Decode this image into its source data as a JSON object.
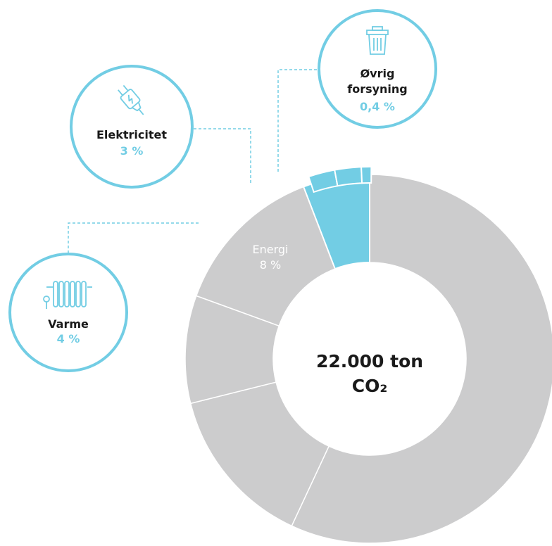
{
  "chart_data": {
    "type": "pie",
    "center_label": {
      "line1": "22.000 ton",
      "line2": "CO₂"
    },
    "energy_slice": {
      "label": "Energi",
      "value_text": "8 %",
      "value": 8
    },
    "slices": [
      {
        "name": "Energi",
        "value": 8,
        "highlighted": true
      },
      {
        "name": "Varme",
        "value": 4,
        "highlighted": true,
        "value_text": "4 %",
        "icon": "radiator-icon"
      },
      {
        "name": "Elektricitet",
        "value": 3,
        "highlighted": true,
        "value_text": "3 %",
        "icon": "plug-icon"
      },
      {
        "name": "Øvrig forsyning",
        "value": 0.4,
        "highlighted": true,
        "value_text": "0,4 %",
        "icon": "trash-can-icon"
      }
    ],
    "legend_circles": [
      {
        "key": "varme",
        "title_lines": [
          "Varme"
        ],
        "value_text": "4 %",
        "icon": "radiator-icon"
      },
      {
        "key": "el",
        "title_lines": [
          "Elektricitet"
        ],
        "value_text": "3 %",
        "icon": "plug-icon"
      },
      {
        "key": "ovrig",
        "title_lines": [
          "Øvrig",
          "forsyning"
        ],
        "value_text": "0,4 %",
        "icon": "trash-can-icon"
      }
    ]
  },
  "colors": {
    "accent": "#72cde4",
    "grey": "#cccccd",
    "text_dark": "#1a1a1a",
    "white": "#ffffff"
  }
}
